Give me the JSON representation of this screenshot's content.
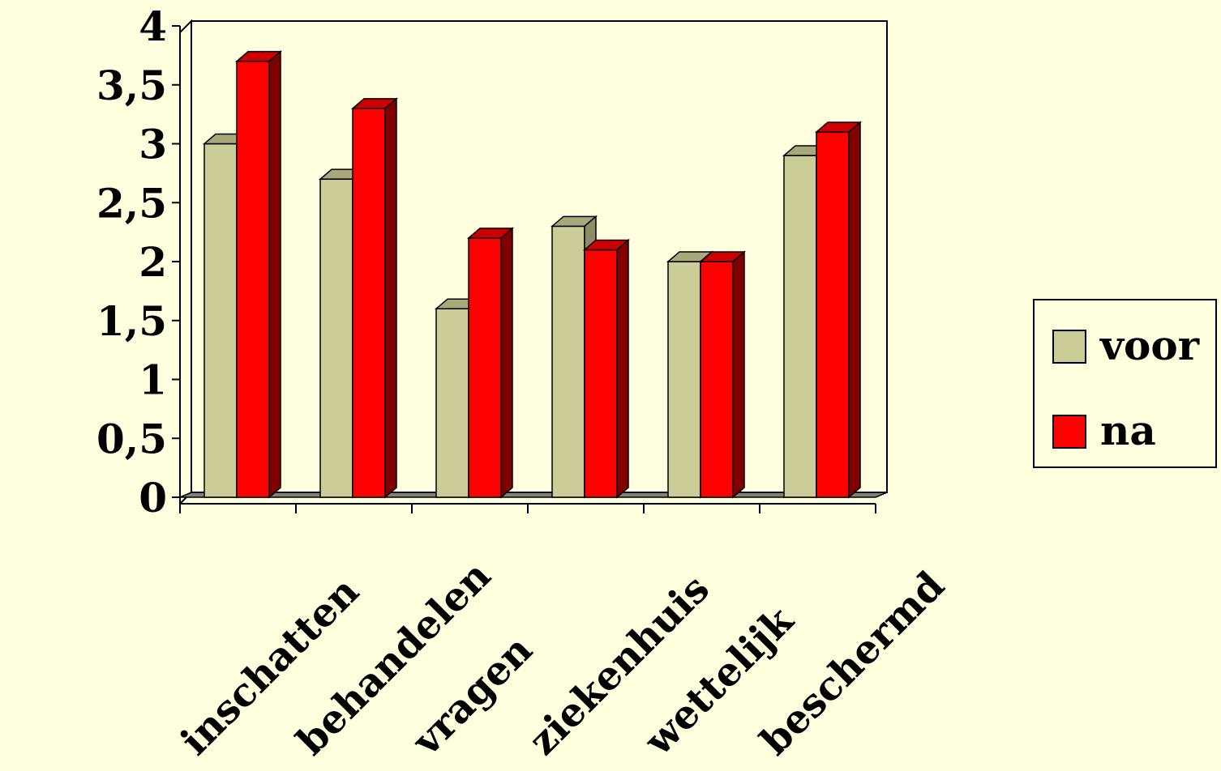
{
  "chart_data": {
    "type": "bar",
    "title": "",
    "xlabel": "",
    "ylabel": "",
    "ylim": [
      0,
      4
    ],
    "yticks": [
      0,
      0.5,
      1,
      1.5,
      2,
      2.5,
      3,
      3.5,
      4
    ],
    "ytick_labels": [
      "0",
      "0,5",
      "1",
      "1,5",
      "2",
      "2,5",
      "3",
      "3,5",
      "4"
    ],
    "categories": [
      "inschatten",
      "behandelen",
      "vragen",
      "ziekenhuis",
      "wettelijk",
      "beschermd"
    ],
    "series": [
      {
        "name": "voor",
        "values": [
          3.0,
          2.7,
          1.6,
          2.3,
          2.0,
          2.9
        ],
        "color": "#CCCC99",
        "side_color": "#8C8C66",
        "top_color": "#A8A87A"
      },
      {
        "name": "na",
        "values": [
          3.7,
          3.3,
          2.2,
          2.1,
          2.0,
          3.1
        ],
        "color": "#FF0000",
        "side_color": "#800000",
        "top_color": "#CC0000"
      }
    ],
    "grid": false,
    "legend_position": "right",
    "style": "3d-bar"
  }
}
